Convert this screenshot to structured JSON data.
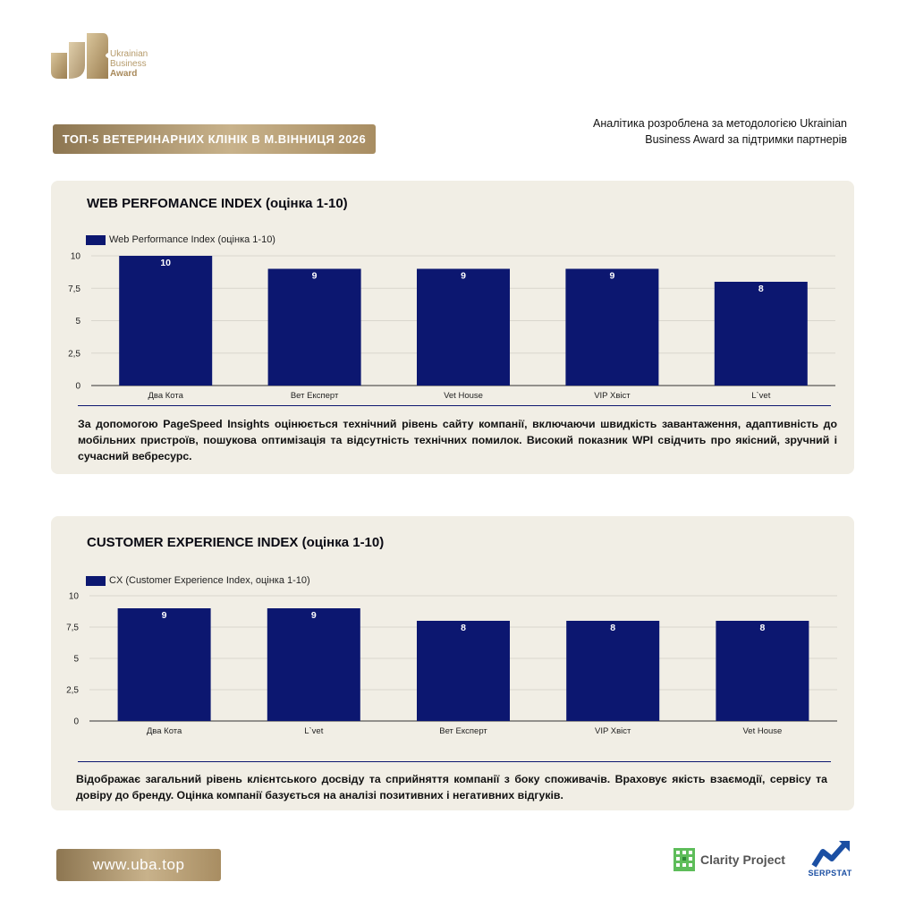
{
  "brand": {
    "logo_line1": "Ukrainian",
    "logo_line2": "Business",
    "logo_line3": "Award",
    "accent_gold": "#b59a6a",
    "bar_color": "#0c1770"
  },
  "header": {
    "title": "ТОП-5 ВЕТЕРИНАРНИХ КЛІНІК В М.ВІННИЦЯ 2026",
    "methodology": "Аналітика розроблена за методологією Ukrainian Business Award за підтримки партнерів"
  },
  "card1": {
    "title": "WEB PERFOMANCE INDEX (оцінка 1-10)",
    "description": "За допомогою PageSpeed Insights оцінюється технічний рівень сайту компанії, включаючи швидкість завантаження, адаптивність до мобільних пристроїв, пошукова оптимізація та відсутність технічних помилок. Високий показник WPI свідчить про якісний, зручний і сучасний вебресурс."
  },
  "card2": {
    "title": "CUSTOMER EXPERIENCE INDEX (оцінка 1-10)",
    "description": "Відображає загальний рівень клієнтського досвіду та сприйняття компанії з боку споживачів. Враховує якість взаємодії, сервісу та довіру до бренду. Оцінка компанії базується на аналізі позитивних і негативних відгуків."
  },
  "footer": {
    "website": "www.uba.top",
    "partner1": "Clarity Project",
    "partner2": "SERPSTAT"
  },
  "chart_data": [
    {
      "type": "bar",
      "title": "WEB PERFOMANCE INDEX (оцінка 1-10)",
      "categories": [
        "Два Кота",
        "Вет Експерт",
        "Vet House",
        "VIP Хвіст",
        "L`vet"
      ],
      "series": [
        {
          "name": "Web Performance Index (оцінка 1-10)",
          "values": [
            10,
            9,
            9,
            9,
            8
          ]
        }
      ],
      "ylim": [
        0,
        10
      ],
      "yticks": [
        "0",
        "2,5",
        "5",
        "7,5",
        "10"
      ],
      "legend": "top-left",
      "grid": true
    },
    {
      "type": "bar",
      "title": "CUSTOMER EXPERIENCE INDEX (оцінка 1-10)",
      "categories": [
        "Два Кота",
        "L`vet",
        "Вет Експерт",
        "VIP Хвіст",
        "Vet House"
      ],
      "series": [
        {
          "name": "CX (Customer Experience Index, оцінка 1-10)",
          "values": [
            9,
            9,
            8,
            8,
            8
          ]
        }
      ],
      "ylim": [
        0,
        10
      ],
      "yticks": [
        "0",
        "2,5",
        "5",
        "7,5",
        "10"
      ],
      "legend": "top-left",
      "grid": true
    }
  ]
}
